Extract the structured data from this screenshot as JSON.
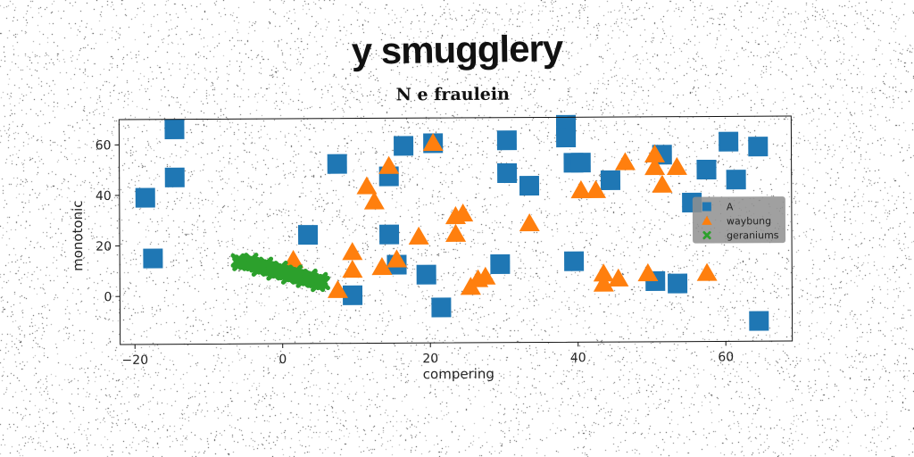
{
  "suptitle": "y smugglery",
  "chart_data": {
    "type": "scatter",
    "title": "N e fraulein",
    "xlabel": "compering",
    "ylabel": "monotonic",
    "xlim": [
      -22,
      69
    ],
    "ylim": [
      -19,
      70
    ],
    "xticks": [
      -20,
      0,
      20,
      40,
      60
    ],
    "yticks": [
      0,
      20,
      40,
      60
    ],
    "grid": false,
    "legend_position": "right",
    "series": [
      {
        "name": "A",
        "marker": "square",
        "color": "#1f77b4",
        "points": [
          [
            -18.5,
            39
          ],
          [
            -17.5,
            15
          ],
          [
            -14.5,
            66
          ],
          [
            -14.5,
            47
          ],
          [
            3.5,
            24
          ],
          [
            7.5,
            52
          ],
          [
            9.5,
            0
          ],
          [
            14.5,
            47
          ],
          [
            14.5,
            24
          ],
          [
            15.5,
            12
          ],
          [
            16.5,
            59
          ],
          [
            19.5,
            8
          ],
          [
            20.5,
            60
          ],
          [
            21.5,
            -5
          ],
          [
            29.5,
            12
          ],
          [
            30.5,
            61
          ],
          [
            30.5,
            48
          ],
          [
            33.5,
            43
          ],
          [
            38.5,
            67
          ],
          [
            38.5,
            62
          ],
          [
            39.5,
            52
          ],
          [
            39.5,
            13
          ],
          [
            40.5,
            52
          ],
          [
            44.5,
            45
          ],
          [
            50.5,
            5
          ],
          [
            51.5,
            55
          ],
          [
            53.5,
            4
          ],
          [
            55.5,
            36
          ],
          [
            57.5,
            49
          ],
          [
            60.5,
            60
          ],
          [
            61.5,
            45
          ],
          [
            64.5,
            58
          ],
          [
            64.5,
            -11
          ]
        ]
      },
      {
        "name": "waybung",
        "marker": "triangle",
        "color": "#ff7f0e",
        "points": [
          [
            1.5,
            14
          ],
          [
            7.5,
            2
          ],
          [
            9.5,
            17
          ],
          [
            9.5,
            10
          ],
          [
            11.5,
            43
          ],
          [
            12.5,
            37
          ],
          [
            13.5,
            11
          ],
          [
            14.5,
            51
          ],
          [
            15.5,
            14
          ],
          [
            18.5,
            23
          ],
          [
            20.5,
            60
          ],
          [
            23.5,
            24
          ],
          [
            23.5,
            31
          ],
          [
            24.5,
            32
          ],
          [
            25.5,
            3
          ],
          [
            26.5,
            6
          ],
          [
            27.5,
            7
          ],
          [
            33.5,
            28
          ],
          [
            40.5,
            41
          ],
          [
            42.5,
            41
          ],
          [
            43.5,
            4
          ],
          [
            43.5,
            8
          ],
          [
            45.5,
            6
          ],
          [
            46.5,
            52
          ],
          [
            49.5,
            8
          ],
          [
            50.5,
            55
          ],
          [
            50.5,
            50
          ],
          [
            51.5,
            43
          ],
          [
            53.5,
            50
          ],
          [
            57.5,
            8
          ]
        ]
      },
      {
        "name": "geraniums",
        "marker": "cross",
        "color": "#2ca02c",
        "points": [
          [
            -6,
            14
          ],
          [
            -5.5,
            13.5
          ],
          [
            -5,
            13
          ],
          [
            -4.5,
            12.8
          ],
          [
            -4,
            12.5
          ],
          [
            -3.5,
            12
          ],
          [
            -3,
            11.6
          ],
          [
            -2.5,
            11.2
          ],
          [
            -2,
            10.9
          ],
          [
            -1.5,
            10.5
          ],
          [
            -1,
            10
          ],
          [
            -0.5,
            9.6
          ],
          [
            0,
            9.3
          ],
          [
            0.5,
            8.9
          ],
          [
            1,
            8.5
          ],
          [
            1.5,
            8.1
          ],
          [
            2,
            7.7
          ],
          [
            2.5,
            7.3
          ],
          [
            3,
            6.9
          ],
          [
            3.5,
            6.5
          ],
          [
            4,
            6.1
          ],
          [
            4.5,
            5.7
          ],
          [
            5,
            5.3
          ],
          [
            5.5,
            4.9
          ],
          [
            -5.8,
            12.6
          ],
          [
            -4.2,
            14.2
          ],
          [
            -3.2,
            10.4
          ],
          [
            -2.2,
            12.6
          ],
          [
            -1.2,
            8.8
          ],
          [
            -0.2,
            11
          ],
          [
            0.8,
            7.2
          ],
          [
            1.8,
            9.4
          ],
          [
            2.8,
            5.8
          ],
          [
            3.8,
            7.8
          ],
          [
            4.8,
            4.2
          ],
          [
            5.2,
            6.4
          ]
        ]
      }
    ]
  }
}
